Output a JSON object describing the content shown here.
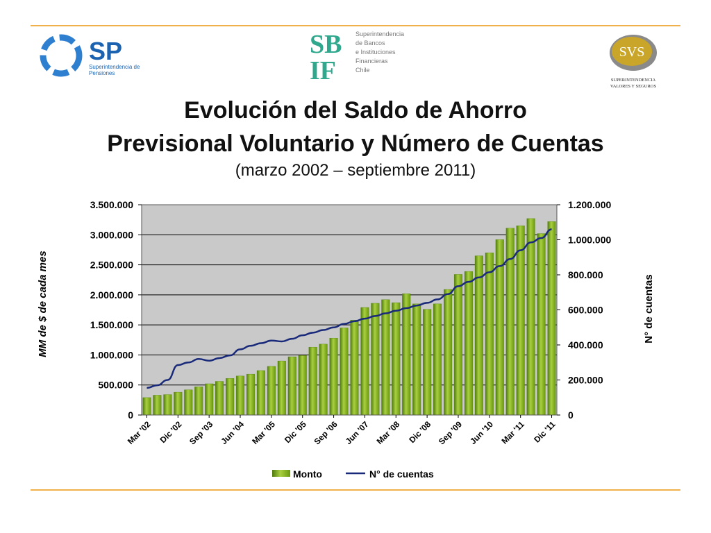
{
  "logos": {
    "sp": {
      "abbr": "SP",
      "line1": "Superintendencia de",
      "line2": "Pensiones"
    },
    "sbif": {
      "abbr_top": "SB",
      "abbr_bottom": "IF",
      "lines": [
        "Superintendencia",
        "de Bancos",
        "e Instituciones",
        "Financieras",
        "Chile"
      ]
    },
    "svs": {
      "abbr": "SVS",
      "line1": "SUPERINTENDENCIA",
      "line2": "VALORES Y SEGUROS"
    }
  },
  "title_line1": "Evolución del Saldo de Ahorro",
  "title_line2": "Previsional Voluntario y Número de Cuentas",
  "subtitle": "(marzo 2002 – septiembre 2011)",
  "colors": {
    "bar": "#7fae1f",
    "line": "#1a2a7a",
    "plot_bg": "#c9c9c9",
    "rule": "#f0b14a"
  },
  "chart_data": {
    "type": "bar+line",
    "ylabel": "MM de $ de cada mes",
    "y2label": "N° de cuentas",
    "ylim": [
      0,
      3500000
    ],
    "y2lim": [
      0,
      1200000
    ],
    "yticks": [
      "0",
      "500.000",
      "1.000.000",
      "1.500.000",
      "2.000.000",
      "2.500.000",
      "3.000.000",
      "3.500.000"
    ],
    "y2ticks": [
      "0",
      "200.000",
      "400.000",
      "600.000",
      "800.000",
      "1.000.000",
      "1.200.000"
    ],
    "xtick_labels": [
      "Mar '02",
      "Dic '02",
      "Sep '03",
      "Jun '04",
      "Mar '05",
      "Dic '05",
      "Sep '06",
      "Jun '07",
      "Mar '08",
      "Dic '08",
      "Sep '09",
      "Jun '10",
      "Mar '11",
      "Dic '11"
    ],
    "legend_position": "bottom",
    "series": [
      {
        "name": "Monto",
        "type": "bar",
        "values": [
          290000,
          330000,
          340000,
          380000,
          420000,
          470000,
          520000,
          560000,
          610000,
          650000,
          680000,
          740000,
          810000,
          900000,
          970000,
          990000,
          1130000,
          1180000,
          1280000,
          1450000,
          1580000,
          1790000,
          1860000,
          1920000,
          1870000,
          2020000,
          1850000,
          1760000,
          1850000,
          2090000,
          2340000,
          2390000,
          2650000,
          2700000,
          2920000,
          3110000,
          3150000,
          3270000,
          3020000,
          3220000
        ]
      },
      {
        "name": "N° de cuentas",
        "type": "line",
        "values": [
          155000,
          170000,
          200000,
          285000,
          300000,
          320000,
          310000,
          325000,
          340000,
          375000,
          395000,
          410000,
          425000,
          420000,
          435000,
          455000,
          470000,
          485000,
          500000,
          520000,
          535000,
          550000,
          565000,
          580000,
          595000,
          610000,
          625000,
          640000,
          660000,
          690000,
          735000,
          760000,
          785000,
          815000,
          850000,
          890000,
          940000,
          985000,
          1010000,
          1060000
        ]
      }
    ]
  }
}
